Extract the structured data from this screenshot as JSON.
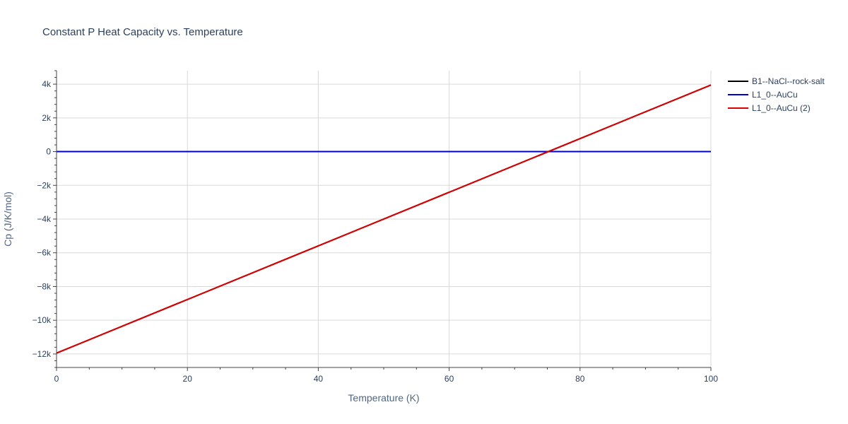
{
  "chart_data": {
    "type": "line",
    "title": "Constant P Heat Capacity vs. Temperature",
    "xlabel": "Temperature (K)",
    "ylabel": "Cp (J/K/mol)",
    "xlim": [
      0,
      100
    ],
    "ylim": [
      -12800,
      4800
    ],
    "x_ticks": [
      0,
      20,
      40,
      60,
      80,
      100
    ],
    "x_tick_labels": [
      "0",
      "20",
      "40",
      "60",
      "80",
      "100"
    ],
    "y_ticks": [
      -12000,
      -10000,
      -8000,
      -6000,
      -4000,
      -2000,
      0,
      2000,
      4000
    ],
    "y_tick_labels": [
      "−12k",
      "−10k",
      "−8k",
      "−6k",
      "−4k",
      "−2k",
      "0",
      "2k",
      "4k"
    ],
    "grid": true,
    "legend_position": "top-right",
    "series": [
      {
        "name": "B1--NaCl--rock-salt",
        "color": "#000000",
        "x": [
          0,
          100
        ],
        "y": [
          -11950,
          3950
        ]
      },
      {
        "name": "L1_0--AuCu",
        "color": "#0000cc",
        "x": [
          0,
          100
        ],
        "y": [
          0,
          0
        ]
      },
      {
        "name": "L1_0--AuCu (2)",
        "color": "#dd0000",
        "x": [
          0,
          100
        ],
        "y": [
          -11950,
          3950
        ]
      }
    ]
  }
}
